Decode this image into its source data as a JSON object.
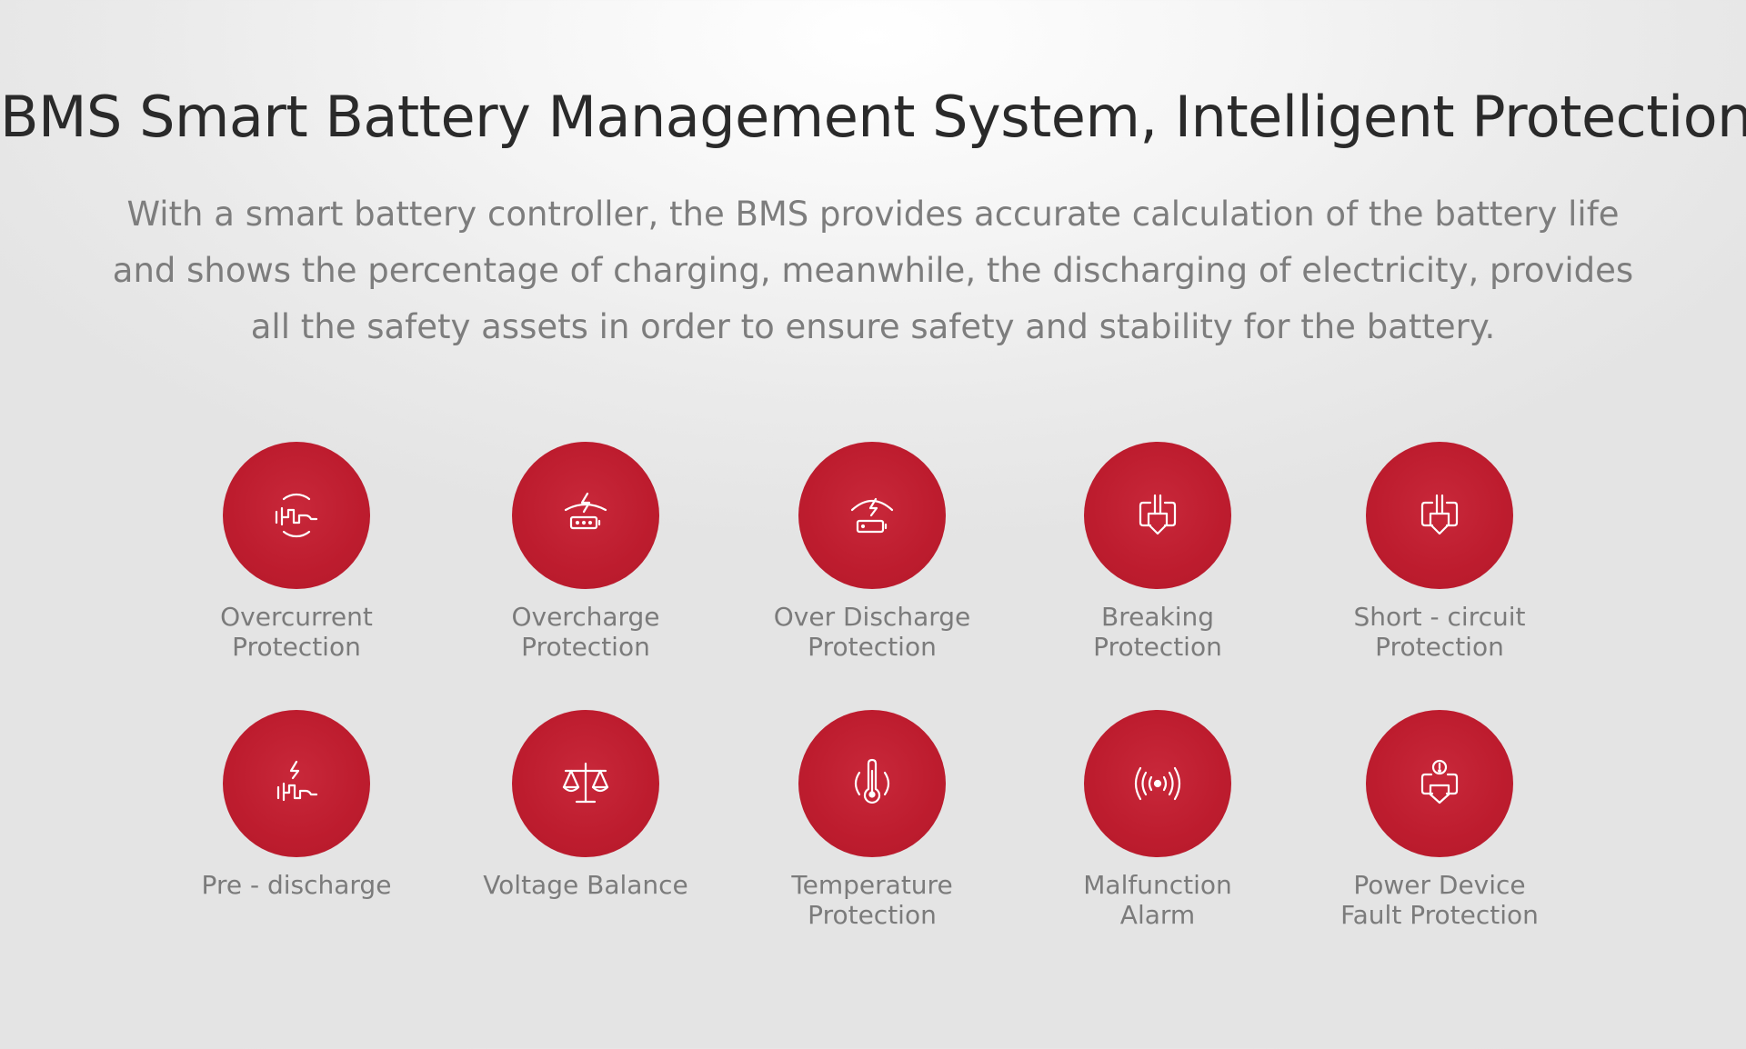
{
  "title": "BMS Smart Battery Management System, Intelligent Protection",
  "subtitle": "With a smart battery controller, the BMS provides accurate calculation of the battery life and shows the percentage of charging, meanwhile, the discharging of electricity, provides all the safety assets in order to ensure safety and stability for the battery.",
  "colors": {
    "accent": "#be1e2f",
    "title": "#2a2a2a",
    "text": "#7b7b7b"
  },
  "features": [
    {
      "icon": "current-wave-icon",
      "line1": "Overcurrent",
      "line2": "Protection"
    },
    {
      "icon": "battery-charge-icon",
      "line1": "Overcharge",
      "line2": "Protection"
    },
    {
      "icon": "battery-discharge-icon",
      "line1": "Over Discharge",
      "line2": "Protection"
    },
    {
      "icon": "power-plug-icon",
      "line1": "Breaking",
      "line2": "Protection"
    },
    {
      "icon": "power-plug-icon",
      "line1": "Short - circuit",
      "line2": "Protection"
    },
    {
      "icon": "pre-discharge-icon",
      "line1": "Pre - discharge",
      "line2": ""
    },
    {
      "icon": "balance-scale-icon",
      "line1": "Voltage Balance",
      "line2": ""
    },
    {
      "icon": "thermometer-icon",
      "line1": "Temperature",
      "line2": "Protection"
    },
    {
      "icon": "alarm-signal-icon",
      "line1": "Malfunction",
      "line2": "Alarm"
    },
    {
      "icon": "device-fault-icon",
      "line1": "Power Device",
      "line2": "Fault Protection"
    }
  ]
}
